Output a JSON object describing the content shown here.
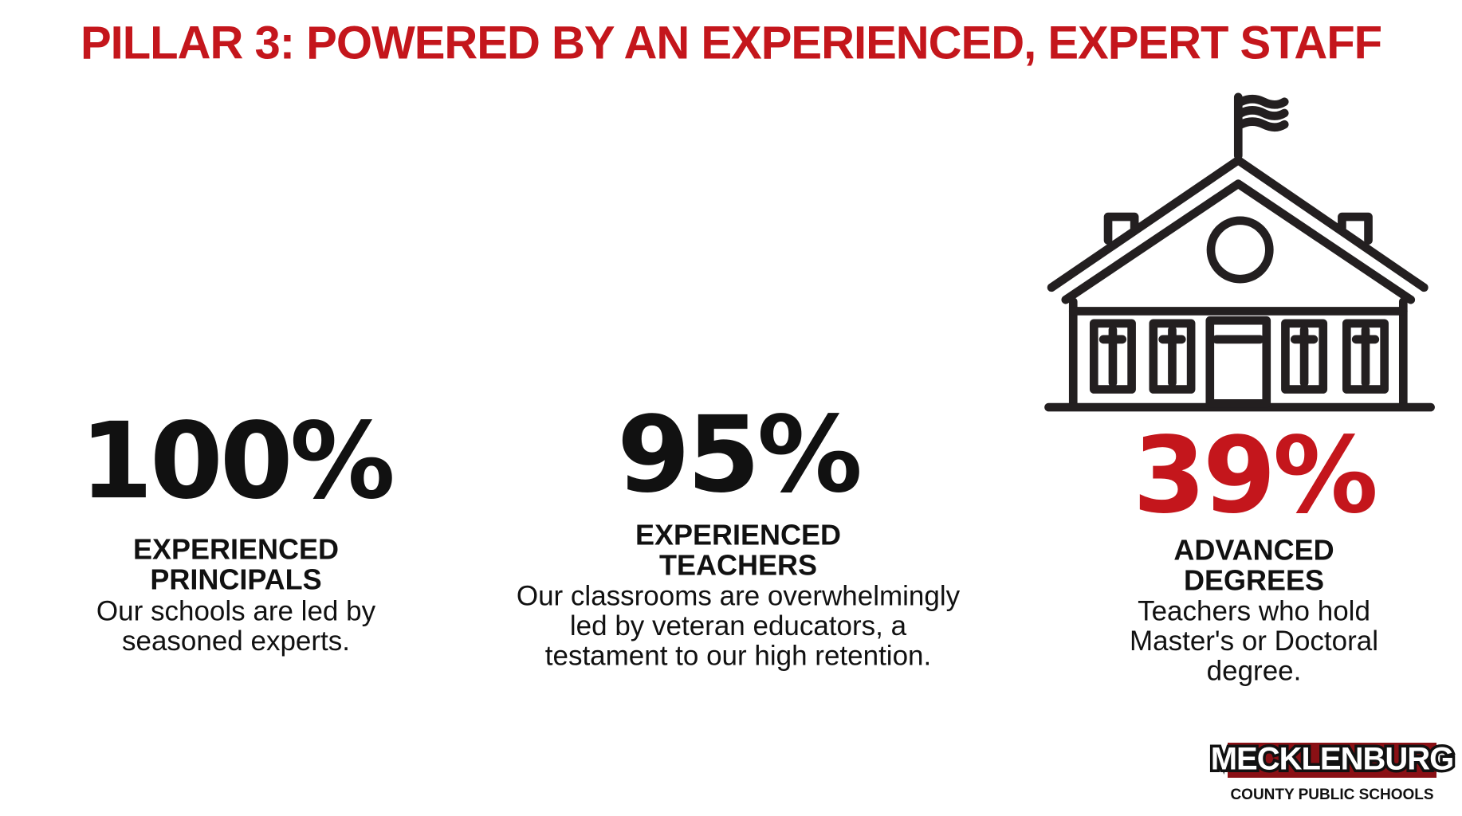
{
  "header": {
    "title": "PILLAR 3: POWERED BY AN EXPERIENCED, EXPERT STAFF"
  },
  "stats": [
    {
      "value": "100%",
      "label": [
        "EXPERIENCED",
        "PRINCIPALS"
      ],
      "description": [
        "Our schools are led by",
        "seasoned experts."
      ]
    },
    {
      "value": "95%",
      "label": [
        "EXPERIENCED",
        "TEACHERS"
      ],
      "description": [
        "Our classrooms are overwhelmingly",
        "led by veteran educators, a",
        "testament to our high retention."
      ]
    },
    {
      "value": "39%",
      "label": [
        "ADVANCED",
        "DEGREES"
      ],
      "description": [
        "Teachers who hold",
        "Master's or Doctoral",
        "degree."
      ]
    }
  ],
  "logo": {
    "name": "MECKLENBURG",
    "subtitle": "COUNTY PUBLIC SCHOOLS"
  }
}
